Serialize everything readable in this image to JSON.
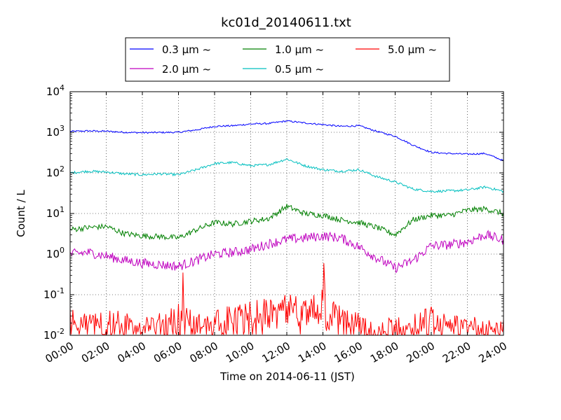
{
  "chart_data": {
    "type": "line",
    "title": "kc01d_20140611.txt",
    "xlabel": "Time on 2014-06-11 (JST)",
    "ylabel": "Count / L",
    "yscale": "log",
    "ylim": [
      0.01,
      10000
    ],
    "xlim": [
      "00:00",
      "24:00"
    ],
    "x_ticks": [
      "00:00",
      "02:00",
      "04:00",
      "06:00",
      "08:00",
      "10:00",
      "12:00",
      "14:00",
      "16:00",
      "18:00",
      "20:00",
      "22:00",
      "24:00"
    ],
    "y_ticks": [
      {
        "base": "10",
        "exp": "-2"
      },
      {
        "base": "10",
        "exp": "-1"
      },
      {
        "base": "10",
        "exp": "0"
      },
      {
        "base": "10",
        "exp": "1"
      },
      {
        "base": "10",
        "exp": "2"
      },
      {
        "base": "10",
        "exp": "3"
      },
      {
        "base": "10",
        "exp": "4"
      }
    ],
    "grid": true,
    "legend_position": "top-center-outside",
    "legend_unit": "μm",
    "legend_suffix": "~",
    "x": [
      "00:00",
      "01:00",
      "02:00",
      "03:00",
      "04:00",
      "05:00",
      "06:00",
      "07:00",
      "08:00",
      "09:00",
      "10:00",
      "11:00",
      "12:00",
      "13:00",
      "14:00",
      "15:00",
      "16:00",
      "17:00",
      "18:00",
      "19:00",
      "20:00",
      "21:00",
      "22:00",
      "23:00",
      "24:00"
    ],
    "series": [
      {
        "name": "0.3",
        "color": "#0000ff",
        "noise": 0.02,
        "values": [
          1050,
          1080,
          1060,
          1000,
          980,
          990,
          1000,
          1150,
          1400,
          1450,
          1600,
          1650,
          1900,
          1700,
          1550,
          1400,
          1450,
          1050,
          800,
          480,
          320,
          300,
          290,
          300,
          200
        ]
      },
      {
        "name": "0.5",
        "color": "#00bfbf",
        "noise": 0.03,
        "values": [
          100,
          110,
          105,
          95,
          90,
          95,
          90,
          120,
          170,
          180,
          150,
          160,
          220,
          150,
          120,
          110,
          120,
          80,
          60,
          40,
          35,
          36,
          38,
          45,
          35
        ]
      },
      {
        "name": "1.0",
        "color": "#008000",
        "noise": 0.07,
        "values": [
          4.0,
          4.5,
          4.8,
          3.2,
          2.8,
          2.7,
          2.5,
          4.0,
          6.0,
          5.5,
          6.5,
          7.5,
          15,
          10,
          9,
          7,
          6,
          4.5,
          3,
          7,
          9,
          9,
          12,
          13,
          10
        ]
      },
      {
        "name": "2.0",
        "color": "#bf00bf",
        "noise": 0.12,
        "values": [
          1.0,
          1.1,
          0.9,
          0.7,
          0.6,
          0.55,
          0.5,
          0.7,
          1.0,
          1.1,
          1.3,
          1.8,
          2.3,
          2.5,
          2.8,
          2.5,
          1.5,
          0.8,
          0.45,
          0.7,
          1.6,
          1.7,
          2.0,
          3.0,
          2.2
        ]
      },
      {
        "name": "5.0",
        "color": "#ff0000",
        "noise": 0.25,
        "values": [
          0.03,
          0.02,
          0.03,
          0.02,
          0.02,
          0.02,
          0.04,
          0.02,
          0.03,
          0.03,
          0.04,
          0.05,
          0.07,
          0.04,
          0.08,
          0.03,
          0.02,
          0.01,
          0.02,
          0.02,
          0.03,
          0.02,
          0.02,
          0.02,
          0.02
        ],
        "spikes": [
          {
            "x": "06:15",
            "y": 0.35
          },
          {
            "x": "14:05",
            "y": 0.6
          },
          {
            "x": "12:10",
            "y": 0.1
          }
        ]
      }
    ]
  }
}
